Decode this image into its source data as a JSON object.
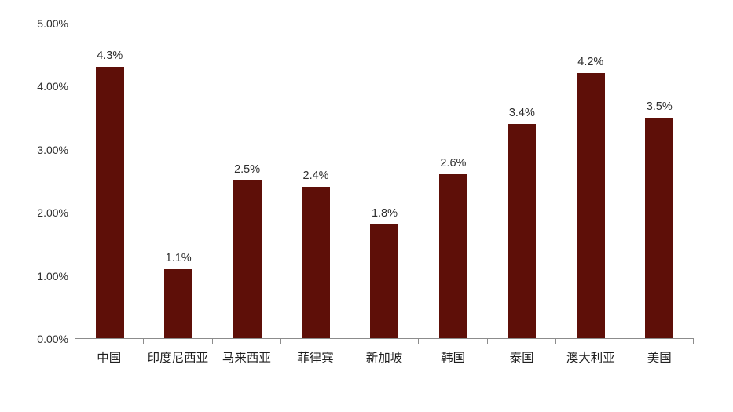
{
  "chart_data": {
    "type": "bar",
    "categories": [
      "中国",
      "印度尼西亚",
      "马来西亚",
      "菲律宾",
      "新加坡",
      "韩国",
      "泰国",
      "澳大利亚",
      "美国"
    ],
    "values": [
      4.3,
      1.1,
      2.5,
      2.4,
      1.8,
      2.6,
      3.4,
      4.2,
      3.5
    ],
    "value_labels": [
      "4.3%",
      "1.1%",
      "2.5%",
      "2.4%",
      "1.8%",
      "2.6%",
      "3.4%",
      "4.2%",
      "3.5%"
    ],
    "title": "",
    "xlabel": "",
    "ylabel": "",
    "ylim": [
      0,
      5
    ],
    "y_tick_labels": [
      "0.00%",
      "1.00%",
      "2.00%",
      "3.00%",
      "4.00%",
      "5.00%"
    ],
    "y_tick_values": [
      0,
      1,
      2,
      3,
      4,
      5
    ],
    "grid": false,
    "legend": "none",
    "colors": {
      "bar": "#5E0F08",
      "axis": "#8c8c8c",
      "text": "#2e2e2e"
    }
  }
}
